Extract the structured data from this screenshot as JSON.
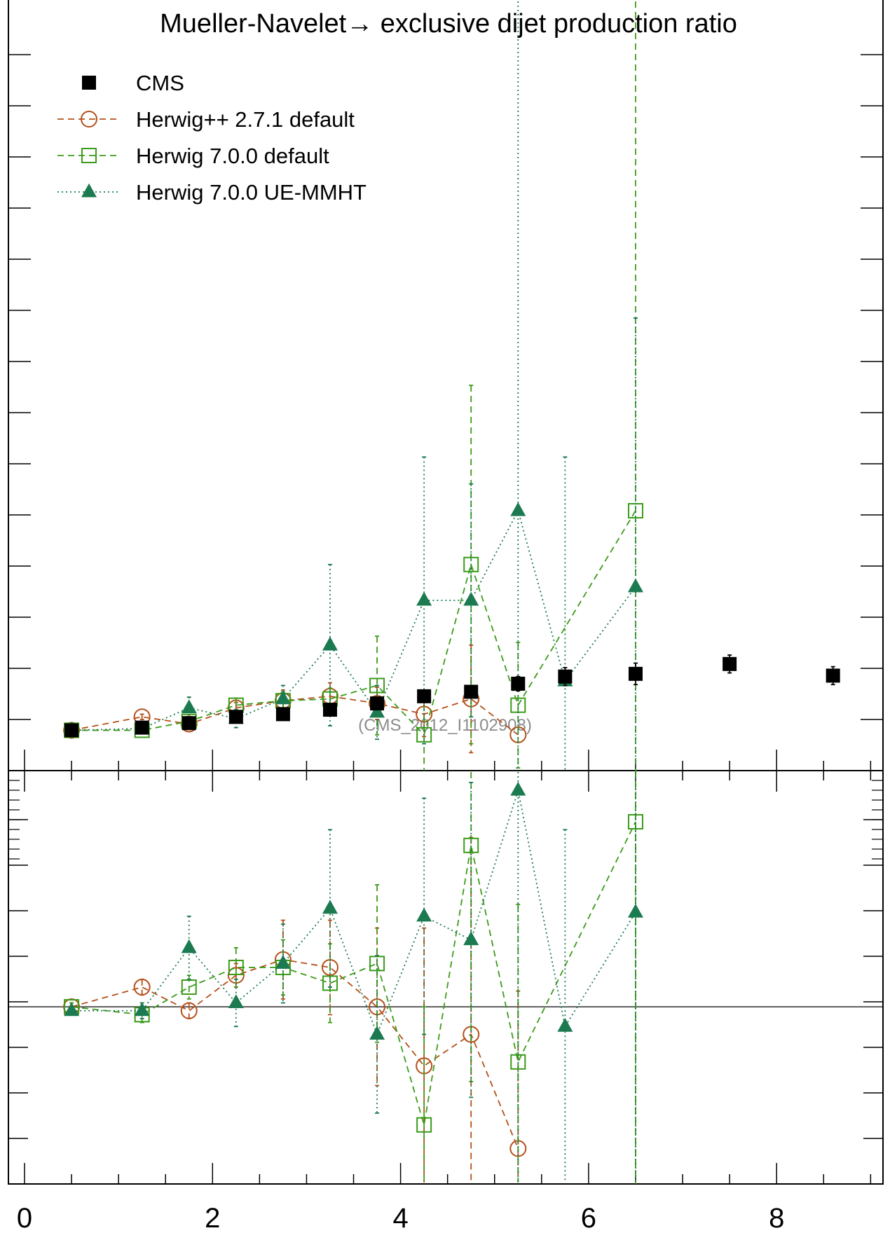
{
  "chart_data": {
    "type": "scatter",
    "title": "Mueller-Navelet→ exclusive dijet production ratio",
    "watermark": "(CMS_2012_I1102908)",
    "xlim": [
      0,
      9.4
    ],
    "xticks": [
      "0",
      "2",
      "4",
      "6",
      "8"
    ],
    "xlabel": "",
    "ylabel": "",
    "main_ylim": [
      0.6,
      9.2
    ],
    "ratio_ylim": [
      0.55,
      1.6
    ],
    "legend_position": "top-left",
    "series": [
      {
        "name": "CMS",
        "color": "#000000",
        "marker": "square-filled",
        "line": "none",
        "x": [
          0.5,
          1.25,
          1.75,
          2.25,
          2.75,
          3.25,
          3.75,
          4.25,
          4.75,
          5.25,
          5.75,
          6.5,
          7.5,
          8.6
        ],
        "y": [
          1.05,
          1.08,
          1.13,
          1.2,
          1.23,
          1.28,
          1.35,
          1.43,
          1.48,
          1.57,
          1.65,
          1.68,
          1.79,
          1.66
        ],
        "err": [
          0.02,
          0.02,
          0.03,
          0.04,
          0.04,
          0.05,
          0.05,
          0.06,
          0.07,
          0.08,
          0.1,
          0.12,
          0.1,
          0.1
        ]
      },
      {
        "name": "Herwig++ 2.7.1 default",
        "color": "#b3501a",
        "marker": "circle-open",
        "line": "dashed",
        "x": [
          0.5,
          1.25,
          1.75,
          2.25,
          2.75,
          3.25,
          3.75,
          4.25,
          4.75,
          5.25
        ],
        "y": [
          1.05,
          1.2,
          1.12,
          1.3,
          1.38,
          1.43,
          1.35,
          1.23,
          1.4,
          1.0
        ],
        "err": [
          0.02,
          0.03,
          0.05,
          0.06,
          0.12,
          0.15,
          0.18,
          0.25,
          0.6,
          0.0
        ]
      },
      {
        "name": "Herwig 7.0.0 default",
        "color": "#3b9b1a",
        "marker": "square-open",
        "line": "dashed",
        "x": [
          0.5,
          1.25,
          1.75,
          2.25,
          2.75,
          3.25,
          3.75,
          4.25,
          4.75,
          5.25,
          6.5
        ],
        "y": [
          1.05,
          1.05,
          1.15,
          1.33,
          1.38,
          1.4,
          1.55,
          1.0,
          2.9,
          1.33,
          3.5
        ],
        "err": [
          0.02,
          0.03,
          0.05,
          0.08,
          0.1,
          0.12,
          0.55,
          0.45,
          2.0,
          0.7,
          9.0
        ]
      },
      {
        "name": "Herwig 7.0.0 UE-MMHT",
        "color": "#1c7a50",
        "marker": "triangle-filled",
        "line": "dotted",
        "x": [
          0.5,
          1.25,
          1.75,
          2.25,
          2.75,
          3.25,
          3.75,
          4.25,
          4.75,
          5.25,
          5.75,
          6.5
        ],
        "y": [
          1.05,
          1.07,
          1.3,
          1.18,
          1.4,
          2.0,
          1.25,
          2.5,
          2.5,
          3.5,
          1.6,
          2.65
        ],
        "err": [
          0.02,
          0.03,
          0.12,
          0.1,
          0.15,
          0.9,
          0.3,
          1.6,
          1.3,
          7.0,
          2.5,
          3.0
        ]
      }
    ],
    "ratio": [
      {
        "name": "Herwig++ 2.7.1 default",
        "x": [
          0.5,
          1.25,
          1.75,
          2.25,
          2.75,
          3.25,
          3.75,
          4.25,
          4.75,
          5.25
        ],
        "y": [
          1.0,
          1.05,
          0.99,
          1.08,
          1.12,
          1.1,
          1.0,
          0.85,
          0.93,
          0.64
        ],
        "err": [
          0.01,
          0.02,
          0.02,
          0.03,
          0.1,
          0.12,
          0.2,
          0.35,
          0.5,
          0.4
        ]
      },
      {
        "name": "Herwig 7.0.0 default",
        "x": [
          0.5,
          1.25,
          1.75,
          2.25,
          2.75,
          3.25,
          3.75,
          4.25,
          4.75,
          5.25,
          6.5
        ],
        "y": [
          1.0,
          0.98,
          1.05,
          1.1,
          1.1,
          1.06,
          1.11,
          0.7,
          1.41,
          0.86,
          1.47
        ],
        "err": [
          0.01,
          0.02,
          0.03,
          0.05,
          0.07,
          0.1,
          0.2,
          0.3,
          0.6,
          0.4,
          3.0
        ]
      },
      {
        "name": "Herwig 7.0.0 UE-MMHT",
        "x": [
          0.5,
          1.25,
          1.75,
          2.25,
          2.75,
          3.25,
          3.75,
          4.25,
          4.75,
          5.25,
          5.75,
          6.5
        ],
        "y": [
          0.99,
          0.99,
          1.15,
          1.01,
          1.11,
          1.25,
          0.93,
          1.23,
          1.17,
          1.55,
          0.95,
          1.24
        ],
        "err": [
          0.01,
          0.02,
          0.08,
          0.06,
          0.1,
          0.2,
          0.2,
          0.3,
          0.4,
          1.0,
          0.5,
          0.8
        ]
      }
    ]
  }
}
